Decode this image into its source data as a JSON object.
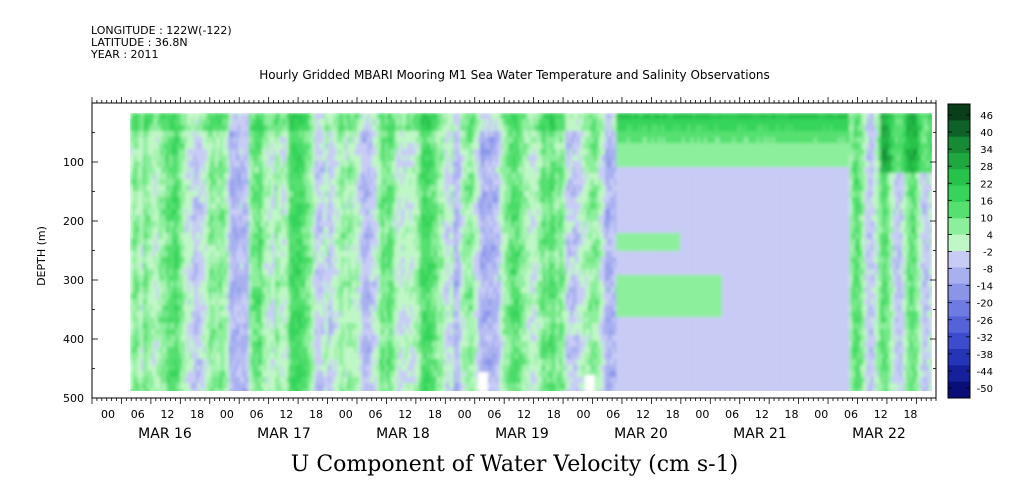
{
  "header": {
    "longitude": "LONGITUDE : 122W(-122)",
    "latitude": "LATITUDE : 36.8N",
    "year": "YEAR : 2011"
  },
  "chart_data": {
    "type": "heatmap",
    "title": "Hourly Gridded MBARI Mooring M1 Sea Water Temperature and Salinity Observations",
    "xlabel": "U Component of Water Velocity (cm s-1)",
    "ylabel": "DEPTH (m)",
    "x_hours": [
      "00",
      "06",
      "12",
      "18",
      "00",
      "06",
      "12",
      "18",
      "00",
      "06",
      "12",
      "18",
      "00",
      "06",
      "12",
      "18",
      "00",
      "06",
      "12",
      "18",
      "00",
      "06",
      "12",
      "18",
      "00",
      "06",
      "12",
      "18"
    ],
    "x_dates": [
      "MAR 16",
      "MAR 17",
      "MAR 18",
      "MAR 19",
      "MAR 20",
      "MAR 21",
      "MAR 22"
    ],
    "y_ticks": [
      100,
      200,
      300,
      400,
      500
    ],
    "ylim": [
      500,
      0
    ],
    "colorbar_levels": [
      "46",
      "40",
      "34",
      "28",
      "22",
      "16",
      "10",
      "4",
      "-2",
      "-8",
      "-14",
      "-20",
      "-26",
      "-32",
      "-38",
      "-44",
      "-50"
    ],
    "colorbar_colors": [
      "#0a3d1a",
      "#0e6128",
      "#178a36",
      "#1fa83f",
      "#27c24a",
      "#36d45a",
      "#55e070",
      "#8cef9c",
      "#c0f7c6",
      "#c8ccf5",
      "#a8b0f0",
      "#8a95ea",
      "#6e7be2",
      "#5563d8",
      "#3c4ccc",
      "#2535b8",
      "#15209a",
      "#0a0f78"
    ],
    "data_summary": {
      "x_range_days": [
        "2011-03-15T18:00",
        "2011-03-22T20:00"
      ],
      "depth_range_m": [
        20,
        490
      ],
      "value_range": [
        -50,
        46
      ],
      "note": "U velocity field: alternating positive (green) and negative (blue) vertical bands before MAR 20 06h; mostly weak negative flow with a strong positive surface layer (20–60 m) from MAR 20 06h to MAR 22 06h; mixed afterwards."
    }
  }
}
